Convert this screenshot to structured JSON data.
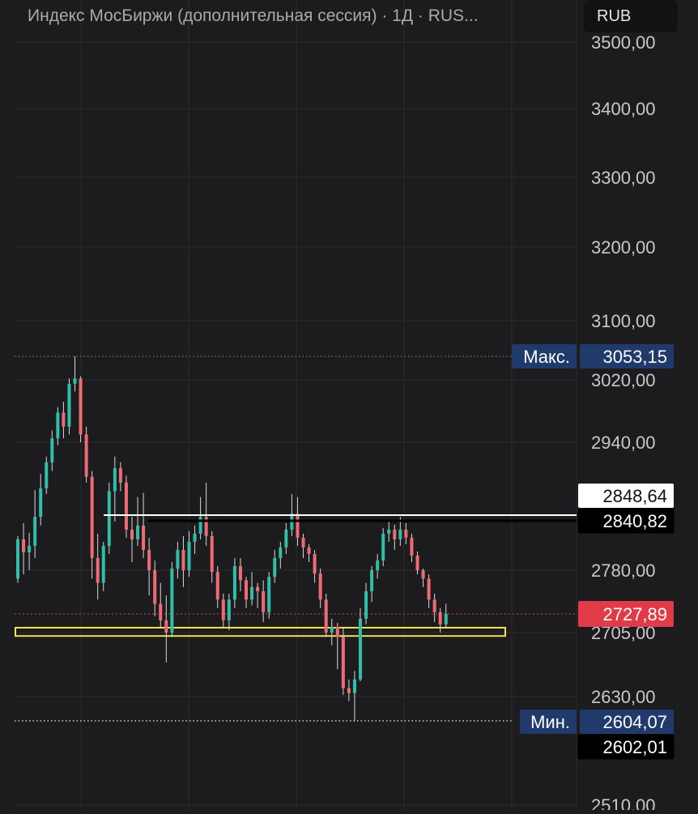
{
  "header": {
    "title": "Индекс МосБиржи (дополнительная сессия) · 1Д · RUS...",
    "currency_button": "RUB"
  },
  "colors": {
    "background": "#1c1c1e",
    "grid": "#2b2b2e",
    "axis_text": "#c8c8cc",
    "up_candle": "#2fbfa8",
    "down_candle": "#ef6b73",
    "max_min_badge": "#1f3a6b",
    "current_price_badge": "#e23b48",
    "support_zone": "#f2e34a",
    "resistance_line": "#ffffff"
  },
  "chart_data": {
    "type": "candlestick",
    "y_ticks": [
      "3500,00",
      "3400,00",
      "3300,00",
      "3200,00",
      "3100,00",
      "3020,00",
      "2940,00",
      "2780,00",
      "2705,00",
      "2630,00",
      "2510,00"
    ],
    "y_tick_values": [
      3500,
      3400,
      3300,
      3200,
      3100,
      3020,
      2940,
      2780,
      2705,
      2630,
      2510
    ],
    "price_labels": {
      "max_label": "Макс.",
      "max_value": "3053,15",
      "min_label": "Мин.",
      "min_value": "2604,07",
      "level_white": "2848,64",
      "level_black": "2840,82",
      "current": "2727,89",
      "level_bottom": "2602,01"
    },
    "levels": {
      "max": 3053.15,
      "min": 2604.07,
      "resistance_white": 2848.64,
      "resistance_black": 2840.82,
      "current": 2727.89,
      "support_zone": [
        2701,
        2711
      ]
    },
    "candles": [
      [
        2770,
        2818,
        2765,
        2822
      ],
      [
        2818,
        2802,
        2775,
        2838
      ],
      [
        2802,
        2810,
        2780,
        2826
      ],
      [
        2810,
        2842,
        2795,
        2857
      ],
      [
        2842,
        2860,
        2835,
        2885
      ],
      [
        2860,
        2905,
        2850,
        2915
      ],
      [
        2905,
        2945,
        2890,
        2955
      ],
      [
        2945,
        2978,
        2935,
        2985
      ],
      [
        2978,
        2960,
        2945,
        2992
      ],
      [
        2960,
        3015,
        2950,
        3022
      ],
      [
        3015,
        3022,
        3005,
        3053
      ],
      [
        3022,
        2950,
        2940,
        3025
      ],
      [
        2950,
        2880,
        2870,
        2960
      ],
      [
        2880,
        2795,
        2770,
        2890
      ],
      [
        2795,
        2765,
        2745,
        2825
      ],
      [
        2765,
        2810,
        2755,
        2815
      ],
      [
        2810,
        2855,
        2800,
        2870
      ],
      [
        2855,
        2895,
        2840,
        2915
      ],
      [
        2895,
        2870,
        2855,
        2905
      ],
      [
        2870,
        2830,
        2820,
        2882
      ],
      [
        2830,
        2818,
        2790,
        2842
      ],
      [
        2818,
        2835,
        2810,
        2848
      ],
      [
        2835,
        2805,
        2795,
        2852
      ],
      [
        2805,
        2780,
        2750,
        2820
      ],
      [
        2780,
        2740,
        2725,
        2792
      ],
      [
        2740,
        2720,
        2712,
        2765
      ],
      [
        2720,
        2705,
        2670,
        2750
      ],
      [
        2705,
        2782,
        2700,
        2790
      ],
      [
        2782,
        2805,
        2770,
        2815
      ],
      [
        2805,
        2780,
        2760,
        2822
      ],
      [
        2780,
        2815,
        2772,
        2828
      ],
      [
        2815,
        2825,
        2800,
        2835
      ],
      [
        2825,
        2842,
        2818,
        2848
      ],
      [
        2842,
        2822,
        2810,
        2870
      ],
      [
        2822,
        2778,
        2765,
        2828
      ],
      [
        2778,
        2745,
        2735,
        2785
      ],
      [
        2745,
        2720,
        2712,
        2752
      ],
      [
        2720,
        2745,
        2708,
        2752
      ],
      [
        2745,
        2785,
        2735,
        2795
      ],
      [
        2785,
        2768,
        2755,
        2795
      ],
      [
        2768,
        2745,
        2735,
        2772
      ],
      [
        2745,
        2760,
        2738,
        2778
      ],
      [
        2760,
        2755,
        2735,
        2765
      ],
      [
        2755,
        2730,
        2718,
        2768
      ],
      [
        2730,
        2772,
        2722,
        2778
      ],
      [
        2772,
        2795,
        2765,
        2805
      ],
      [
        2795,
        2808,
        2782,
        2815
      ],
      [
        2808,
        2830,
        2800,
        2838
      ],
      [
        2830,
        2843,
        2822,
        2850
      ],
      [
        2843,
        2820,
        2810,
        2848
      ],
      [
        2820,
        2808,
        2795,
        2825
      ],
      [
        2808,
        2800,
        2790,
        2812
      ],
      [
        2800,
        2776,
        2765,
        2805
      ],
      [
        2776,
        2745,
        2735,
        2782
      ],
      [
        2745,
        2705,
        2700,
        2752
      ],
      [
        2705,
        2712,
        2690,
        2722
      ],
      [
        2712,
        2700,
        2662,
        2717
      ],
      [
        2700,
        2640,
        2632,
        2712
      ],
      [
        2640,
        2634,
        2625,
        2650
      ],
      [
        2634,
        2650,
        2604,
        2660
      ],
      [
        2650,
        2722,
        2648,
        2735
      ],
      [
        2722,
        2755,
        2715,
        2765
      ],
      [
        2755,
        2780,
        2742,
        2785
      ],
      [
        2780,
        2792,
        2770,
        2800
      ],
      [
        2792,
        2825,
        2785,
        2832
      ],
      [
        2825,
        2830,
        2815,
        2840
      ],
      [
        2830,
        2818,
        2805,
        2836
      ],
      [
        2818,
        2830,
        2810,
        2842
      ],
      [
        2830,
        2820,
        2812,
        2838
      ],
      [
        2820,
        2798,
        2790,
        2825
      ],
      [
        2798,
        2780,
        2775,
        2803
      ],
      [
        2780,
        2770,
        2760,
        2782
      ],
      [
        2770,
        2745,
        2735,
        2775
      ],
      [
        2745,
        2730,
        2718,
        2752
      ],
      [
        2730,
        2715,
        2705,
        2735
      ],
      [
        2715,
        2728,
        2710,
        2740
      ]
    ]
  }
}
